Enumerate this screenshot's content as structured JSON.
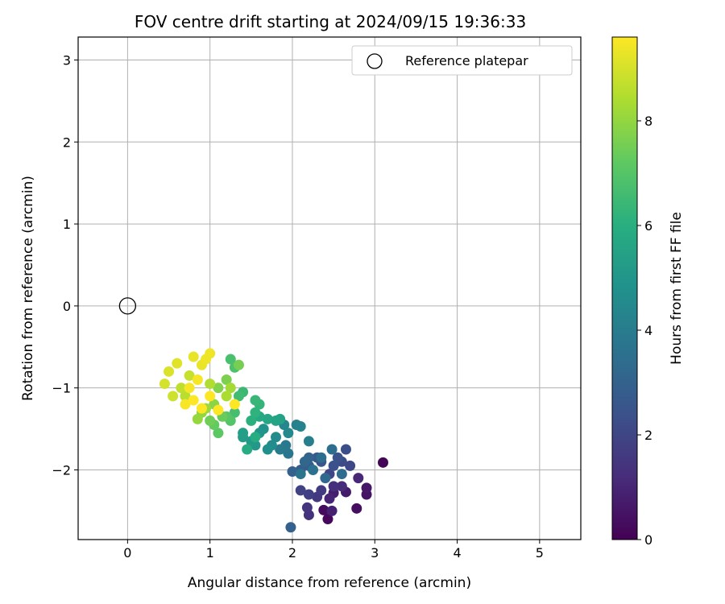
{
  "chart_data": {
    "type": "scatter",
    "title": "FOV centre drift starting at 2024/09/15 19:36:33",
    "xlabel": "Angular distance from reference (arcmin)",
    "ylabel": "Rotation from reference (arcmin)",
    "xlim": [
      -0.6,
      5.5
    ],
    "ylim": [
      -2.85,
      3.28
    ],
    "xticks": [
      "0",
      "1",
      "2",
      "3",
      "4",
      "5"
    ],
    "yticks": [
      "−2",
      "−1",
      "0",
      "1",
      "2",
      "3"
    ],
    "grid": true,
    "legend": {
      "position": "top-right",
      "entries": [
        "Reference platepar"
      ]
    },
    "colorbar": {
      "label": "Hours from first FF file",
      "range": [
        0,
        9.6
      ],
      "ticks": [
        "0",
        "2",
        "4",
        "6",
        "8"
      ],
      "colormap": "viridis"
    },
    "reference_point": {
      "x": 0,
      "y": 0
    },
    "series": [
      {
        "points": [
          [
            3.1,
            -1.91,
            0.1
          ],
          [
            2.43,
            -2.6,
            0.2
          ],
          [
            2.38,
            -2.49,
            0.3
          ],
          [
            2.78,
            -2.47,
            0.4
          ],
          [
            2.9,
            -2.3,
            0.5
          ],
          [
            2.9,
            -2.22,
            0.6
          ],
          [
            2.65,
            -2.27,
            0.7
          ],
          [
            2.5,
            -2.28,
            0.8
          ],
          [
            2.48,
            -2.5,
            0.9
          ],
          [
            2.45,
            -2.35,
            1.0
          ],
          [
            2.8,
            -2.1,
            1.1
          ],
          [
            2.6,
            -2.2,
            1.2
          ],
          [
            2.5,
            -2.2,
            1.3
          ],
          [
            2.2,
            -2.55,
            1.4
          ],
          [
            2.18,
            -2.46,
            1.5
          ],
          [
            2.3,
            -2.33,
            1.6
          ],
          [
            2.35,
            -2.25,
            1.7
          ],
          [
            2.2,
            -2.3,
            1.8
          ],
          [
            2.1,
            -2.25,
            1.9
          ],
          [
            2.45,
            -2.05,
            2.0
          ],
          [
            2.7,
            -1.95,
            2.1
          ],
          [
            2.6,
            -1.9,
            2.2
          ],
          [
            2.65,
            -1.75,
            2.3
          ],
          [
            2.5,
            -1.95,
            2.4
          ],
          [
            2.55,
            -1.85,
            2.5
          ],
          [
            2.35,
            -1.9,
            2.6
          ],
          [
            2.3,
            -1.85,
            2.7
          ],
          [
            2.2,
            -1.95,
            2.8
          ],
          [
            2.1,
            -2.0,
            2.9
          ],
          [
            2.0,
            -2.02,
            3.0
          ],
          [
            1.98,
            -2.7,
            3.0
          ],
          [
            2.2,
            -1.85,
            3.1
          ],
          [
            2.15,
            -1.9,
            3.2
          ],
          [
            2.4,
            -2.1,
            3.3
          ],
          [
            2.6,
            -2.05,
            3.4
          ],
          [
            2.48,
            -1.75,
            3.5
          ],
          [
            2.35,
            -1.85,
            3.5
          ],
          [
            2.25,
            -2.0,
            3.6
          ],
          [
            2.1,
            -2.05,
            3.7
          ],
          [
            1.95,
            -1.8,
            3.8
          ],
          [
            1.92,
            -1.7,
            3.9
          ],
          [
            1.85,
            -1.75,
            4.0
          ],
          [
            2.2,
            -1.65,
            4.1
          ],
          [
            2.05,
            -1.45,
            4.2
          ],
          [
            2.1,
            -1.47,
            4.3
          ],
          [
            1.9,
            -1.45,
            4.4
          ],
          [
            1.95,
            -1.55,
            4.5
          ],
          [
            1.8,
            -1.6,
            4.6
          ],
          [
            1.75,
            -1.7,
            4.7
          ],
          [
            1.7,
            -1.75,
            4.8
          ],
          [
            1.65,
            -1.5,
            4.9
          ],
          [
            1.6,
            -1.55,
            5.0
          ],
          [
            1.55,
            -1.7,
            5.1
          ],
          [
            1.5,
            -1.65,
            5.2
          ],
          [
            1.4,
            -1.6,
            5.3
          ],
          [
            1.4,
            -1.55,
            5.4
          ],
          [
            1.85,
            -1.38,
            5.5
          ],
          [
            1.8,
            -1.4,
            5.6
          ],
          [
            1.7,
            -1.38,
            5.7
          ],
          [
            1.6,
            -1.35,
            5.8
          ],
          [
            1.45,
            -1.75,
            5.9
          ],
          [
            1.55,
            -1.6,
            6.0
          ],
          [
            1.5,
            -1.4,
            6.1
          ],
          [
            1.55,
            -1.3,
            6.2
          ],
          [
            1.6,
            -1.2,
            6.3
          ],
          [
            1.55,
            -1.15,
            6.4
          ],
          [
            1.4,
            -1.05,
            6.5
          ],
          [
            1.35,
            -1.1,
            6.6
          ],
          [
            1.3,
            -1.3,
            6.7
          ],
          [
            1.25,
            -0.65,
            6.8
          ],
          [
            1.3,
            -0.75,
            6.9
          ],
          [
            1.25,
            -1.4,
            7.0
          ],
          [
            1.2,
            -1.35,
            7.1
          ],
          [
            1.1,
            -1.55,
            7.2
          ],
          [
            1.05,
            -1.45,
            7.3
          ],
          [
            1.15,
            -1.35,
            7.4
          ],
          [
            1.0,
            -1.4,
            7.5
          ],
          [
            1.35,
            -0.72,
            7.6
          ],
          [
            1.2,
            -0.9,
            7.7
          ],
          [
            1.1,
            -1.0,
            7.8
          ],
          [
            1.05,
            -1.2,
            7.9
          ],
          [
            0.9,
            -1.3,
            8.0
          ],
          [
            0.85,
            -1.38,
            8.1
          ],
          [
            0.95,
            -1.25,
            8.2
          ],
          [
            1.25,
            -1.0,
            8.3
          ],
          [
            1.2,
            -1.1,
            8.4
          ],
          [
            1.0,
            -0.95,
            8.5
          ],
          [
            0.7,
            -1.1,
            8.6
          ],
          [
            0.65,
            -1.0,
            8.7
          ],
          [
            0.75,
            -0.85,
            8.8
          ],
          [
            0.55,
            -1.1,
            8.9
          ],
          [
            0.45,
            -0.95,
            9.0
          ],
          [
            0.5,
            -0.8,
            9.1
          ],
          [
            0.6,
            -0.7,
            9.2
          ],
          [
            0.8,
            -0.62,
            9.3
          ],
          [
            0.9,
            -0.72,
            9.3
          ],
          [
            0.95,
            -0.65,
            9.4
          ],
          [
            1.0,
            -0.58,
            9.4
          ],
          [
            0.85,
            -0.9,
            9.5
          ],
          [
            0.75,
            -1.0,
            9.5
          ],
          [
            0.7,
            -1.2,
            9.5
          ],
          [
            0.8,
            -1.15,
            9.6
          ],
          [
            0.9,
            -1.25,
            9.6
          ],
          [
            1.0,
            -1.1,
            9.6
          ],
          [
            1.1,
            -1.27,
            9.6
          ],
          [
            1.3,
            -1.2,
            9.6
          ]
        ]
      }
    ]
  }
}
